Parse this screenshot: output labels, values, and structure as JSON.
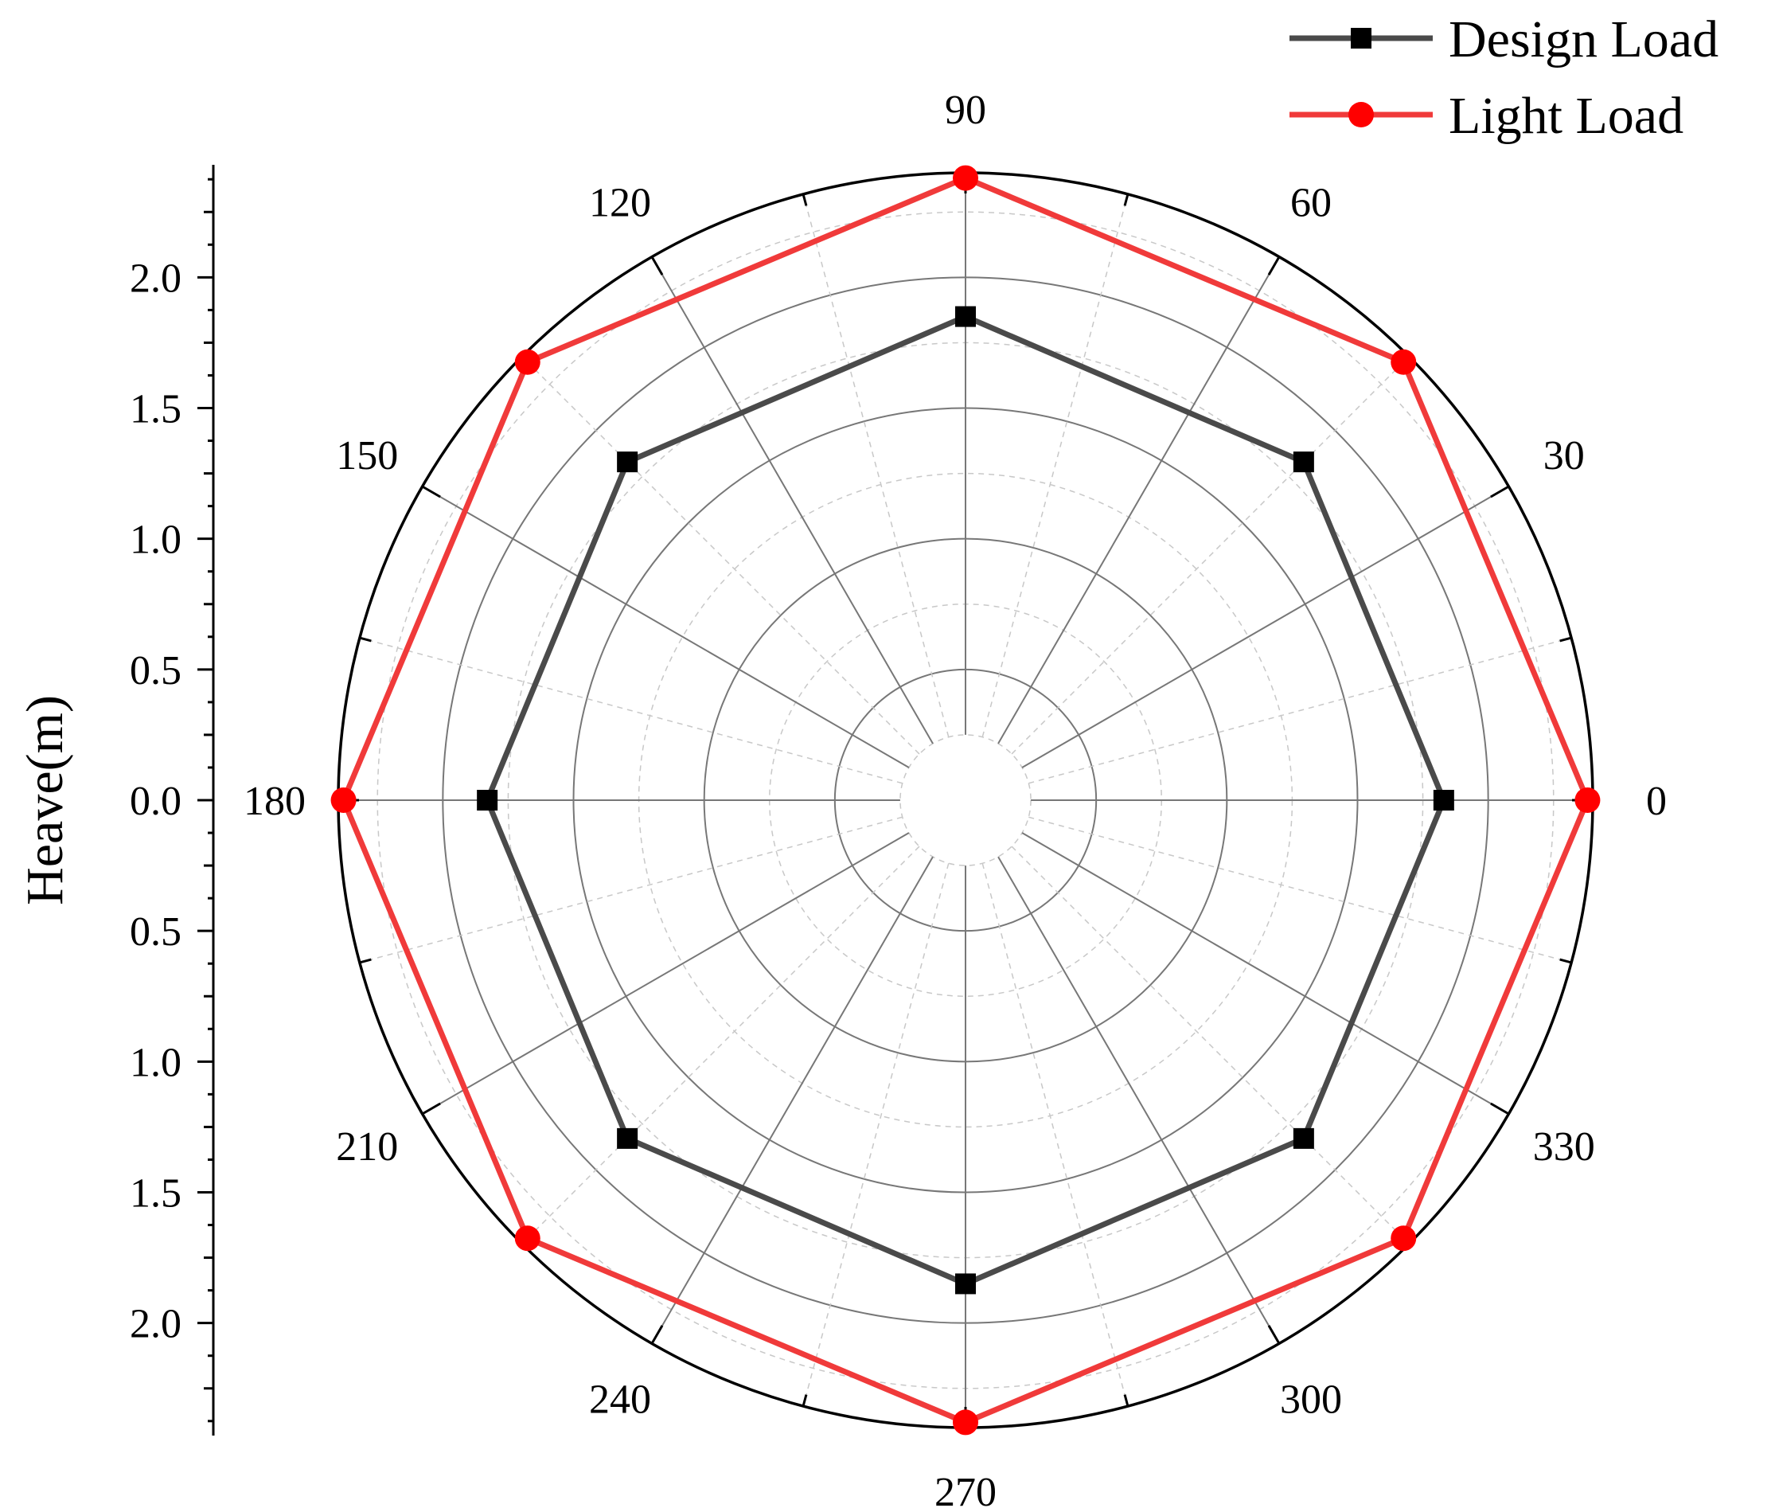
{
  "chart_data": {
    "type": "polar-line",
    "angular_axis": {
      "unit": "degrees",
      "labels": [
        "0",
        "30",
        "60",
        "90",
        "120",
        "150",
        "180",
        "210",
        "240",
        "270",
        "300",
        "330"
      ]
    },
    "radial_axis": {
      "title": "Heave(m)",
      "range": [
        0,
        2.4
      ],
      "tick_labels_upper": [
        "2.0",
        "1.5",
        "1.0",
        "0.5",
        "0.0"
      ],
      "tick_labels_lower": [
        "0.5",
        "1.0",
        "1.5",
        "2.0"
      ]
    },
    "grid": true,
    "legend_position": "top-right",
    "series": [
      {
        "name": "Design Load",
        "color": "#4a4a4a",
        "marker": "square",
        "angles": [
          0,
          45,
          90,
          135,
          180,
          225,
          270,
          315
        ],
        "values": [
          1.83,
          1.83,
          1.85,
          1.83,
          1.83,
          1.83,
          1.85,
          1.83
        ]
      },
      {
        "name": "Light Load",
        "color": "#f03a3a",
        "marker": "circle",
        "angles": [
          0,
          45,
          90,
          135,
          180,
          225,
          270,
          315
        ],
        "values": [
          2.38,
          2.37,
          2.38,
          2.37,
          2.38,
          2.37,
          2.38,
          2.37
        ]
      }
    ]
  }
}
